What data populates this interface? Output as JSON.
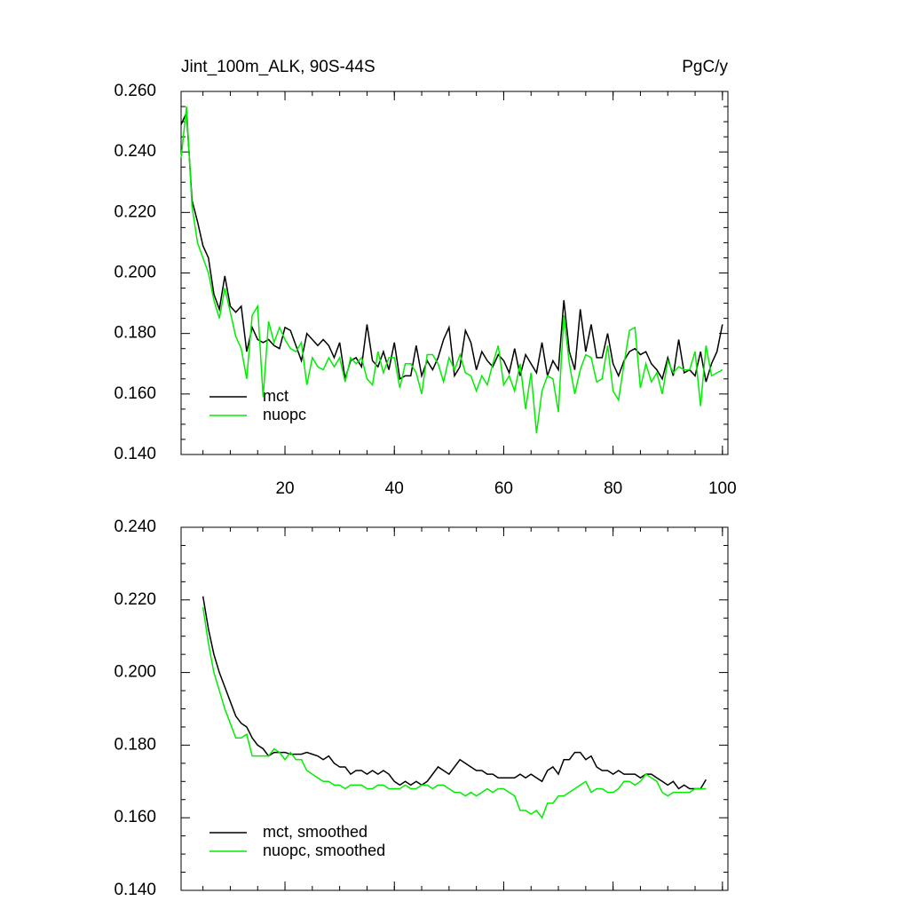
{
  "chart_data": [
    {
      "type": "line",
      "title": "Jint_100m_ALK, 90S-44S",
      "units": "PgC/y",
      "x": [
        1,
        2,
        3,
        4,
        5,
        6,
        7,
        8,
        9,
        10,
        11,
        12,
        13,
        14,
        15,
        16,
        17,
        18,
        19,
        20,
        21,
        22,
        23,
        24,
        25,
        26,
        27,
        28,
        29,
        30,
        31,
        32,
        33,
        34,
        35,
        36,
        37,
        38,
        39,
        40,
        41,
        42,
        43,
        44,
        45,
        46,
        47,
        48,
        49,
        50,
        51,
        52,
        53,
        54,
        55,
        56,
        57,
        58,
        59,
        60,
        61,
        62,
        63,
        64,
        65,
        66,
        67,
        68,
        69,
        70,
        71,
        72,
        73,
        74,
        75,
        76,
        77,
        78,
        79,
        80,
        81,
        82,
        83,
        84,
        85,
        86,
        87,
        88,
        89,
        90,
        91,
        92,
        93,
        94,
        95,
        96,
        97,
        98,
        99,
        100
      ],
      "series": [
        {
          "name": "mct",
          "color": "#000000",
          "values": [
            0.249,
            0.253,
            0.224,
            0.217,
            0.209,
            0.205,
            0.193,
            0.188,
            0.199,
            0.189,
            0.187,
            0.189,
            0.174,
            0.182,
            0.178,
            0.177,
            0.178,
            0.176,
            0.175,
            0.182,
            0.181,
            0.176,
            0.171,
            0.18,
            0.178,
            0.176,
            0.178,
            0.176,
            0.172,
            0.177,
            0.165,
            0.171,
            0.172,
            0.169,
            0.183,
            0.171,
            0.169,
            0.174,
            0.168,
            0.177,
            0.165,
            0.166,
            0.166,
            0.176,
            0.166,
            0.171,
            0.168,
            0.172,
            0.178,
            0.182,
            0.166,
            0.169,
            0.181,
            0.177,
            0.168,
            0.174,
            0.171,
            0.169,
            0.173,
            0.171,
            0.167,
            0.175,
            0.166,
            0.173,
            0.17,
            0.167,
            0.177,
            0.166,
            0.171,
            0.168,
            0.191,
            0.174,
            0.168,
            0.188,
            0.174,
            0.183,
            0.172,
            0.172,
            0.18,
            0.17,
            0.166,
            0.171,
            0.174,
            0.175,
            0.173,
            0.174,
            0.17,
            0.168,
            0.165,
            0.172,
            0.166,
            0.178,
            0.167,
            0.168,
            0.166,
            0.174,
            0.164,
            0.17,
            0.174,
            0.183
          ]
        },
        {
          "name": "nuopc",
          "color": "#00ee00",
          "values": [
            0.238,
            0.255,
            0.222,
            0.21,
            0.205,
            0.2,
            0.191,
            0.185,
            0.195,
            0.187,
            0.179,
            0.175,
            0.165,
            0.186,
            0.189,
            0.159,
            0.184,
            0.177,
            0.182,
            0.178,
            0.175,
            0.174,
            0.177,
            0.163,
            0.172,
            0.169,
            0.168,
            0.172,
            0.169,
            0.172,
            0.164,
            0.172,
            0.17,
            0.172,
            0.165,
            0.163,
            0.174,
            0.167,
            0.172,
            0.172,
            0.162,
            0.17,
            0.17,
            0.167,
            0.16,
            0.173,
            0.173,
            0.17,
            0.164,
            0.172,
            0.168,
            0.173,
            0.167,
            0.166,
            0.161,
            0.166,
            0.163,
            0.17,
            0.176,
            0.163,
            0.166,
            0.161,
            0.17,
            0.155,
            0.167,
            0.147,
            0.161,
            0.166,
            0.165,
            0.154,
            0.186,
            0.17,
            0.16,
            0.168,
            0.173,
            0.172,
            0.164,
            0.165,
            0.176,
            0.161,
            0.158,
            0.17,
            0.181,
            0.182,
            0.162,
            0.17,
            0.164,
            0.167,
            0.16,
            0.171,
            0.167,
            0.169,
            0.168,
            0.168,
            0.174,
            0.156,
            0.176,
            0.166,
            0.167,
            0.168
          ]
        }
      ],
      "xlim": [
        1,
        101
      ],
      "xticks": [
        20,
        40,
        60,
        80,
        100
      ],
      "xtick_labels": true,
      "ylim": [
        0.14,
        0.26
      ],
      "yticks": [
        {
          "value": 0.14,
          "label": "0.140"
        },
        {
          "value": 0.16,
          "label": "0.160"
        },
        {
          "value": 0.18,
          "label": "0.180"
        },
        {
          "value": 0.2,
          "label": "0.200"
        },
        {
          "value": 0.22,
          "label": "0.220"
        },
        {
          "value": 0.24,
          "label": "0.240"
        },
        {
          "value": 0.26,
          "label": "0.260"
        }
      ],
      "legend": "lower left",
      "grid": false
    },
    {
      "type": "line",
      "x": [
        5,
        6,
        7,
        8,
        9,
        10,
        11,
        12,
        13,
        14,
        15,
        16,
        17,
        18,
        19,
        20,
        21,
        22,
        23,
        24,
        25,
        26,
        27,
        28,
        29,
        30,
        31,
        32,
        33,
        34,
        35,
        36,
        37,
        38,
        39,
        40,
        41,
        42,
        43,
        44,
        45,
        46,
        47,
        48,
        49,
        50,
        51,
        52,
        53,
        54,
        55,
        56,
        57,
        58,
        59,
        60,
        61,
        62,
        63,
        64,
        65,
        66,
        67,
        68,
        69,
        70,
        71,
        72,
        73,
        74,
        75,
        76,
        77,
        78,
        79,
        80,
        81,
        82,
        83,
        84,
        85,
        86,
        87,
        88,
        89,
        90,
        91,
        92,
        93,
        94,
        95,
        96,
        97
      ],
      "series": [
        {
          "name": "mct, smoothed",
          "color": "#000000",
          "values": [
            0.221,
            0.212,
            0.205,
            0.2,
            0.196,
            0.192,
            0.188,
            0.186,
            0.185,
            0.182,
            0.18,
            0.179,
            0.177,
            0.178,
            0.178,
            0.178,
            0.1775,
            0.1775,
            0.1775,
            0.178,
            0.1775,
            0.177,
            0.176,
            0.177,
            0.175,
            0.174,
            0.174,
            0.172,
            0.173,
            0.173,
            0.172,
            0.173,
            0.172,
            0.173,
            0.172,
            0.17,
            0.169,
            0.17,
            0.169,
            0.17,
            0.169,
            0.17,
            0.172,
            0.174,
            0.173,
            0.172,
            0.174,
            0.176,
            0.175,
            0.174,
            0.173,
            0.173,
            0.172,
            0.172,
            0.171,
            0.171,
            0.171,
            0.171,
            0.172,
            0.171,
            0.172,
            0.171,
            0.17,
            0.173,
            0.174,
            0.172,
            0.176,
            0.176,
            0.178,
            0.178,
            0.176,
            0.177,
            0.174,
            0.173,
            0.173,
            0.172,
            0.173,
            0.172,
            0.172,
            0.172,
            0.171,
            0.172,
            0.172,
            0.171,
            0.17,
            0.169,
            0.17,
            0.168,
            0.169,
            0.168,
            0.168,
            0.168,
            0.1705
          ]
        },
        {
          "name": "nuopc, smoothed",
          "color": "#00ee00",
          "values": [
            0.218,
            0.208,
            0.2,
            0.195,
            0.19,
            0.186,
            0.182,
            0.182,
            0.183,
            0.177,
            0.177,
            0.177,
            0.177,
            0.179,
            0.178,
            0.176,
            0.178,
            0.176,
            0.176,
            0.173,
            0.172,
            0.171,
            0.17,
            0.17,
            0.169,
            0.169,
            0.168,
            0.169,
            0.169,
            0.169,
            0.168,
            0.168,
            0.169,
            0.169,
            0.168,
            0.168,
            0.168,
            0.169,
            0.168,
            0.168,
            0.169,
            0.169,
            0.168,
            0.169,
            0.169,
            0.168,
            0.167,
            0.167,
            0.166,
            0.167,
            0.166,
            0.167,
            0.168,
            0.167,
            0.168,
            0.168,
            0.167,
            0.166,
            0.162,
            0.162,
            0.161,
            0.162,
            0.16,
            0.164,
            0.164,
            0.166,
            0.166,
            0.167,
            0.168,
            0.169,
            0.17,
            0.167,
            0.168,
            0.168,
            0.167,
            0.167,
            0.168,
            0.17,
            0.17,
            0.169,
            0.17,
            0.172,
            0.171,
            0.17,
            0.167,
            0.166,
            0.167,
            0.167,
            0.167,
            0.167,
            0.168,
            0.168,
            0.168
          ]
        }
      ],
      "xlim": [
        1,
        101
      ],
      "xticks": [
        20,
        40,
        60,
        80,
        100
      ],
      "xtick_labels": false,
      "ylim": [
        0.14,
        0.24
      ],
      "yticks": [
        {
          "value": 0.14,
          "label": "0.140"
        },
        {
          "value": 0.16,
          "label": "0.160"
        },
        {
          "value": 0.18,
          "label": "0.180"
        },
        {
          "value": 0.2,
          "label": "0.200"
        },
        {
          "value": 0.22,
          "label": "0.220"
        },
        {
          "value": 0.24,
          "label": "0.240"
        }
      ],
      "legend": "lower left",
      "grid": false
    }
  ]
}
